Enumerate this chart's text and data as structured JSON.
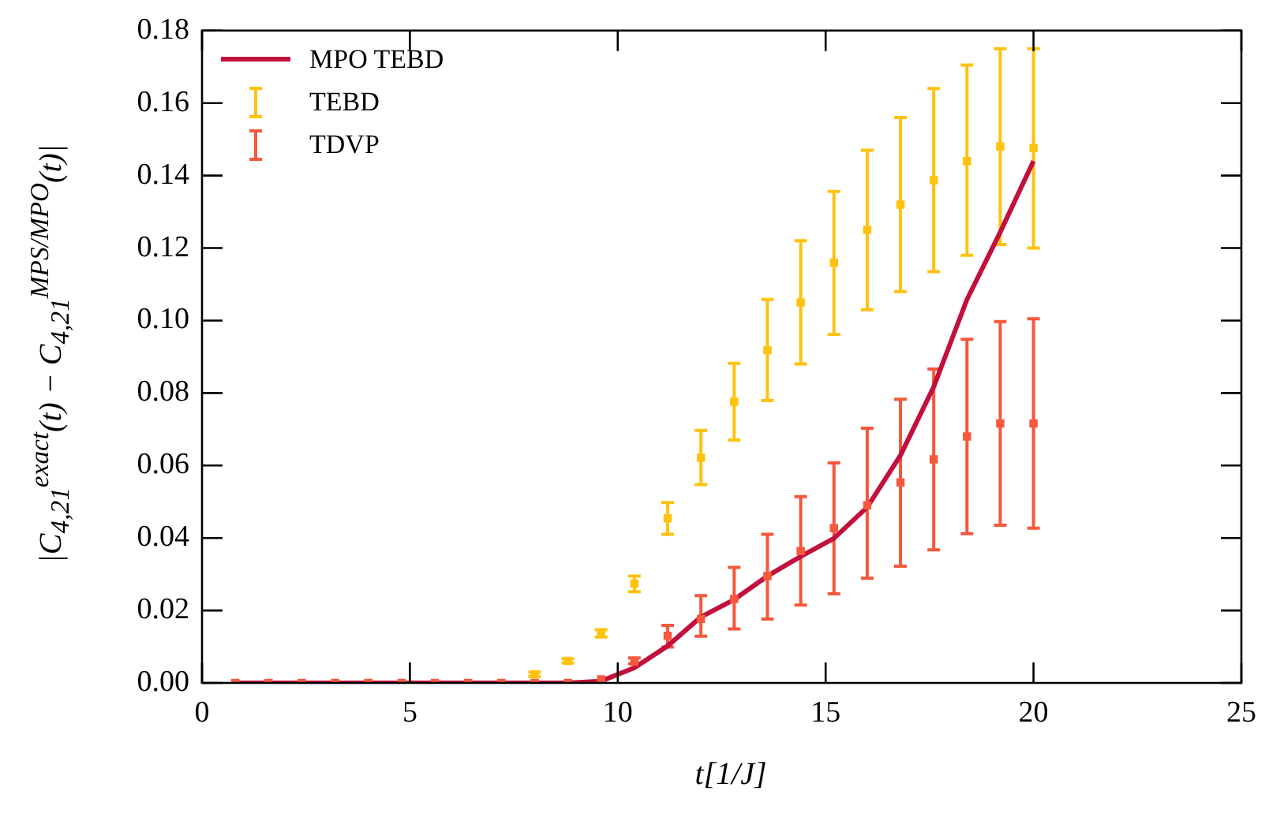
{
  "chart_data": {
    "type": "scatter",
    "xlabel": "t[1/J]",
    "ylabel": "|C$_{4,21}$$^{exact}$(t) − C$_{4,21}$$^{MPS/MPO}$(t)|",
    "x": [
      0.8,
      1.6,
      2.4,
      3.2,
      4,
      4.8,
      5.6,
      6.4,
      7.2,
      8,
      8.8,
      9.6,
      10.4,
      11.2,
      12,
      12.8,
      13.6,
      14.4,
      15.2,
      16,
      16.8,
      17.6,
      18.4,
      19.2,
      20
    ],
    "series": [
      {
        "name": "MPO TEBD",
        "type": "line",
        "marker": "none",
        "color": "#c20f3b",
        "values": [
          0,
          0,
          0,
          0,
          0,
          0,
          0,
          0,
          0,
          0,
          0,
          0.0005,
          0.0042,
          0.0102,
          0.0182,
          0.023,
          0.0295,
          0.0349,
          0.0399,
          0.0485,
          0.0628,
          0.0817,
          0.1058,
          0.1244,
          0.144
        ]
      },
      {
        "name": "TEBD",
        "type": "scatter",
        "marker": "square",
        "color": "#ffc20e",
        "values": [
          null,
          null,
          null,
          null,
          null,
          null,
          null,
          null,
          null,
          0.0024,
          0.0061,
          0.0137,
          0.0274,
          0.0454,
          0.0621,
          0.0776,
          0.0918,
          0.105,
          0.116,
          0.125,
          0.132,
          0.1387,
          0.144,
          0.148,
          0.1476
        ],
        "errors": [
          null,
          null,
          null,
          null,
          null,
          null,
          null,
          null,
          null,
          [
            0.0018,
            0.003
          ],
          [
            0.0055,
            0.0067
          ],
          [
            0.0127,
            0.0147
          ],
          [
            0.0252,
            0.0295
          ],
          [
            0.041,
            0.0498
          ],
          [
            0.0547,
            0.0697
          ],
          [
            0.067,
            0.0882
          ],
          [
            0.0779,
            0.1058
          ],
          [
            0.088,
            0.122
          ],
          [
            0.0962,
            0.1356
          ],
          [
            0.103,
            0.147
          ],
          [
            0.108,
            0.156
          ],
          [
            0.1135,
            0.164
          ],
          [
            0.118,
            0.1705
          ],
          [
            0.121,
            0.175
          ],
          [
            0.12,
            0.175
          ]
        ]
      },
      {
        "name": "TDVP",
        "type": "scatter",
        "marker": "square",
        "color": "#f5583c",
        "values": [
          0,
          0,
          0,
          0,
          0,
          0,
          0,
          0,
          0,
          0,
          0,
          0.001,
          0.0059,
          0.013,
          0.0177,
          0.0232,
          0.0295,
          0.0364,
          0.0427,
          0.049,
          0.0553,
          0.0617,
          0.068,
          0.0716,
          0.0716
        ],
        "errors": [
          null,
          null,
          null,
          null,
          null,
          null,
          null,
          null,
          null,
          null,
          null,
          null,
          [
            0.0053,
            0.0069
          ],
          [
            0.0099,
            0.0159
          ],
          [
            0.0129,
            0.0241
          ],
          [
            0.0149,
            0.0319
          ],
          [
            0.0176,
            0.041
          ],
          [
            0.0215,
            0.0514
          ],
          [
            0.0246,
            0.0607
          ],
          [
            0.0289,
            0.0703
          ],
          [
            0.0322,
            0.0783
          ],
          [
            0.0367,
            0.0866
          ],
          [
            0.0412,
            0.0948
          ],
          [
            0.0435,
            0.0997
          ],
          [
            0.0427,
            0.1005
          ]
        ]
      }
    ],
    "xlim": [
      0,
      25
    ],
    "xticks": [
      0,
      5,
      10,
      15,
      20,
      25
    ],
    "ylim": [
      0,
      0.18
    ],
    "yticks": [
      {
        "value": 0,
        "label": "0.00"
      },
      {
        "value": 0.02,
        "label": "0.02"
      },
      {
        "value": 0.04,
        "label": "0.04"
      },
      {
        "value": 0.06,
        "label": "0.06"
      },
      {
        "value": 0.08,
        "label": "0.08"
      },
      {
        "value": 0.1,
        "label": "0.10"
      },
      {
        "value": 0.12,
        "label": "0.12"
      },
      {
        "value": 0.14,
        "label": "0.14"
      },
      {
        "value": 0.16,
        "label": "0.16"
      },
      {
        "value": 0.18,
        "label": "0.18"
      }
    ],
    "grid": false,
    "legend": "top left"
  }
}
